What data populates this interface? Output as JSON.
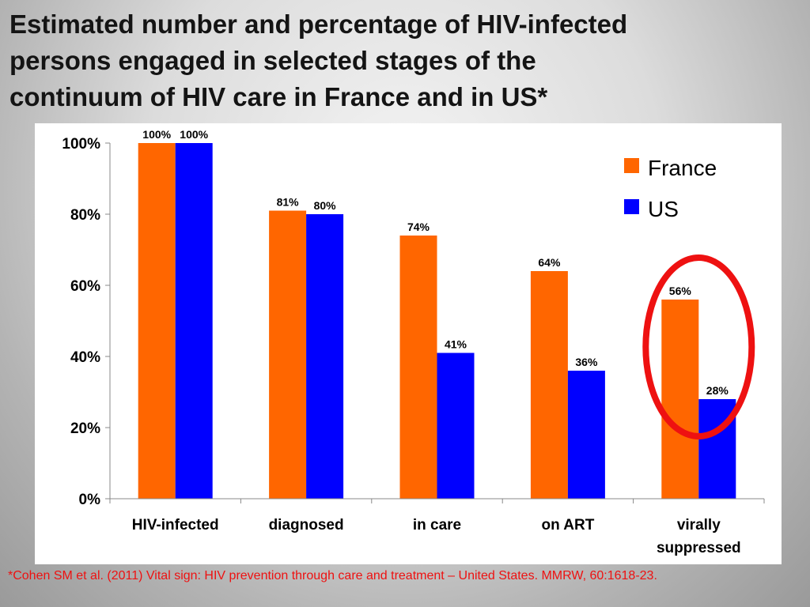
{
  "slide": {
    "title_lines": [
      "Estimated number and percentage of HIV-infected",
      "persons engaged in selected stages of the",
      "continuum of HIV care in France and in US*"
    ],
    "footnote": "*Cohen SM et al. (2011) Vital sign: HIV prevention through care and treatment – United States. MMRW, 60:1618-23."
  },
  "colors": {
    "france": "#ff6600",
    "us": "#0000ff",
    "highlight_ring": "#ee1111"
  },
  "chart_data": {
    "type": "bar",
    "categories": [
      "HIV-infected",
      "diagnosed",
      "in care",
      "on ART",
      "virally suppressed"
    ],
    "series": [
      {
        "name": "France",
        "values": [
          100,
          81,
          74,
          64,
          56
        ],
        "labels": [
          "100%",
          "81%",
          "74%",
          "64%",
          "56%"
        ]
      },
      {
        "name": "US",
        "values": [
          100,
          80,
          41,
          36,
          28
        ],
        "labels": [
          "100%",
          "80%",
          "41%",
          "36%",
          "28%"
        ]
      }
    ],
    "ylim": [
      0,
      100
    ],
    "yticks": [
      0,
      20,
      40,
      60,
      80,
      100
    ],
    "ytick_labels": [
      "0%",
      "20%",
      "40%",
      "60%",
      "80%",
      "100%"
    ],
    "legend_position": "top-right",
    "grid": false,
    "annotation": {
      "type": "ellipse",
      "category": "virally suppressed"
    }
  }
}
